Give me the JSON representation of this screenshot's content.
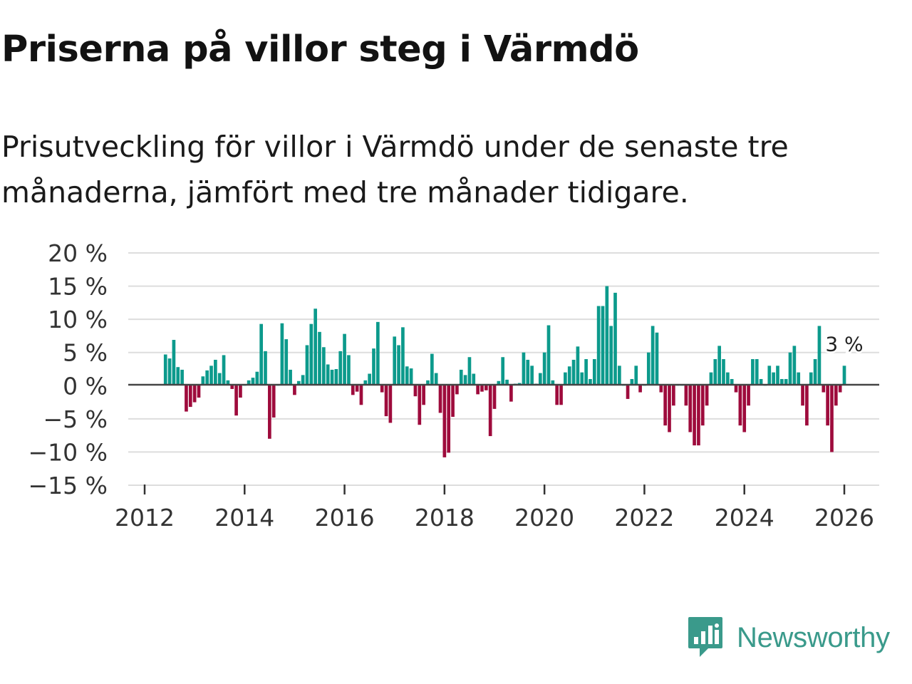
{
  "title": "Priserna på villor steg i Värmdö",
  "subtitle": "Prisutveckling för villor i Värmdö under de senaste tre månaderna, jämfört med tre månader tidigare.",
  "brand": {
    "name": "Newsworthy",
    "icon": "newsworthy-logo-icon",
    "color": "#3a9a8b"
  },
  "colors": {
    "positive": "#0c9a8c",
    "negative": "#9e0b3c",
    "zero_line": "#444444",
    "grid": "#dddddd"
  },
  "chart_data": {
    "type": "bar",
    "title": "Priserna på villor steg i Värmdö",
    "xlabel": "",
    "ylabel": "",
    "ylim": [
      -15,
      20
    ],
    "xlim": [
      2011.75,
      2026.7
    ],
    "y_ticks": [
      20,
      15,
      10,
      5,
      0,
      -5,
      -10,
      -15
    ],
    "y_tick_labels": [
      "20 %",
      "15 %",
      "10 %",
      "5 %",
      "0 %",
      "−5 %",
      "−10 %",
      "−15 %"
    ],
    "x_ticks": [
      2012,
      2014,
      2016,
      2018,
      2020,
      2022,
      2024,
      2026
    ],
    "x_tick_labels": [
      "2012",
      "2014",
      "2016",
      "2018",
      "2020",
      "2022",
      "2024",
      "2026"
    ],
    "grid": true,
    "start": {
      "year": 2012,
      "month": 6
    },
    "values": [
      4.7,
      4.1,
      6.9,
      2.8,
      2.4,
      -3.9,
      -3.2,
      -2.5,
      -1.8,
      1.4,
      2.3,
      3.0,
      3.9,
      1.9,
      4.6,
      0.8,
      -0.5,
      -4.5,
      -1.8,
      0,
      0.8,
      1.2,
      2.1,
      9.3,
      5.2,
      -8.0,
      -4.8,
      0,
      9.4,
      7.0,
      2.4,
      -1.4,
      0.7,
      1.6,
      6.1,
      9.3,
      11.6,
      8.1,
      5.8,
      3.2,
      2.4,
      2.5,
      5.2,
      7.8,
      4.6,
      -1.4,
      -0.9,
      -2.9,
      0.8,
      1.8,
      5.6,
      9.6,
      -1.0,
      -4.6,
      -5.6,
      7.4,
      6.1,
      8.8,
      2.9,
      2.6,
      -1.6,
      -5.9,
      -2.9,
      0.8,
      4.8,
      1.9,
      -4.1,
      -10.8,
      -10.1,
      -4.7,
      -1.3,
      2.4,
      1.6,
      4.3,
      1.8,
      -1.3,
      -0.9,
      -0.7,
      -7.6,
      -3.5,
      0.7,
      4.3,
      0.9,
      -2.4,
      0.3,
      0.4,
      5.0,
      3.9,
      3.0,
      0.3,
      1.9,
      5.0,
      9.1,
      0.8,
      -2.9,
      -2.9,
      2.0,
      2.9,
      3.9,
      5.9,
      2.0,
      4.0,
      1.0,
      4.0,
      12.0,
      12.0,
      15.0,
      9.0,
      14.0,
      3.0,
      0,
      -2.0,
      1.0,
      3.0,
      -1.0,
      0,
      5.0,
      9.0,
      8.0,
      -1.0,
      -6.0,
      -7.0,
      -3.0,
      0,
      0,
      -3.0,
      -7.0,
      -9.0,
      -9.0,
      -6.0,
      -3.0,
      2.0,
      4.0,
      6.0,
      4.0,
      2.0,
      1.0,
      -1.0,
      -6.0,
      -7.0,
      -3.0,
      4.0,
      4.0,
      1.0,
      0,
      3.0,
      2.0,
      3.0,
      1.0,
      1.0,
      5.0,
      6.0,
      2.0,
      -3.0,
      -6.0,
      2.0,
      4.0,
      9.0,
      -1.0,
      -6.0,
      -10.0,
      -3.0,
      -1.0,
      3.0
    ],
    "last_value_label": "3 %"
  }
}
